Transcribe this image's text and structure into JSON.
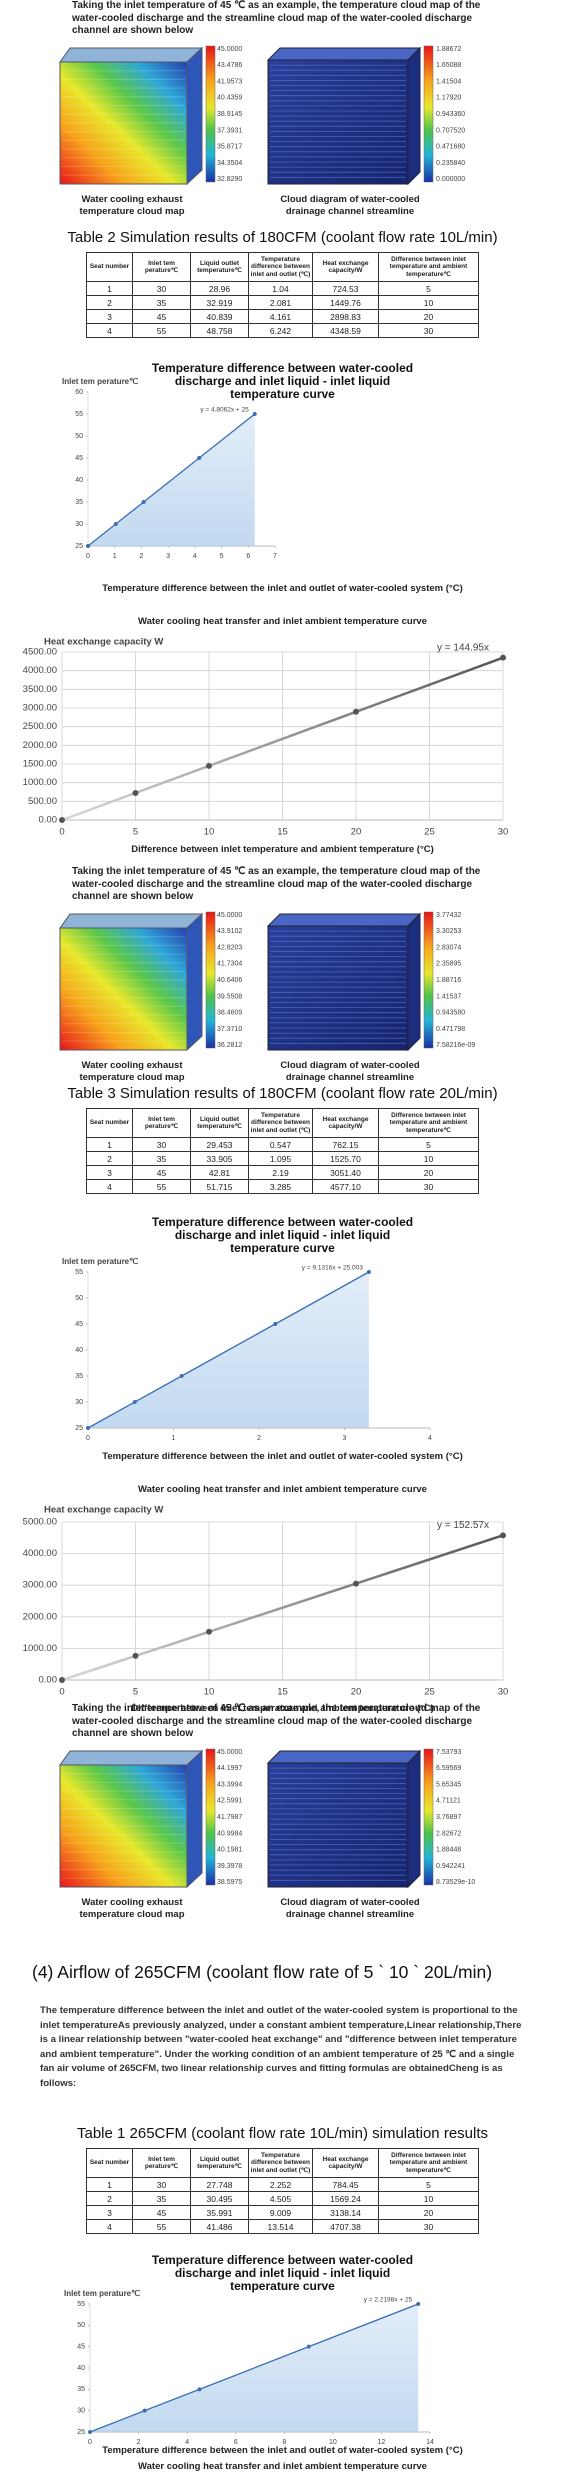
{
  "blocks": [
    {
      "kind": "figure",
      "caption": "Taking the inlet temperature of 45 ℃ as an example, the temperature cloud map of the water-cooled discharge and the streamline cloud map of the water-cooled discharge channel are shown below",
      "left": {
        "legend": [
          "45.0000",
          "43.4786",
          "41.9573",
          "40.4359",
          "38.9145",
          "37.3931",
          "35.8717",
          "34.3504",
          "32.8290"
        ],
        "label": "Water cooling exhaust temperature cloud map"
      },
      "right": {
        "legend": [
          "1.88672",
          "1.65088",
          "1.41504",
          "1.17920",
          "0.943360",
          "0.707520",
          "0.471680",
          "0.235840",
          "0.000000"
        ],
        "label": "Cloud diagram of water-cooled drainage channel streamline"
      }
    },
    {
      "kind": "table",
      "title": "Table 2 Simulation results of 180CFM (coolant flow rate 10L/min)",
      "header": [
        "Seat number",
        "Inlet tem perature℃",
        "Liquid outlet temperature℃",
        "Temperature difference between inlet and outlet (℃)",
        "Heat exchange capacity/W",
        "Difference between inlet temperature and ambient temperature℃"
      ],
      "rows": [
        [
          "1",
          "30",
          "28.96",
          "1.04",
          "724.53",
          "5"
        ],
        [
          "2",
          "35",
          "32.919",
          "2.081",
          "1449.76",
          "10"
        ],
        [
          "3",
          "45",
          "40.839",
          "4.161",
          "2898.83",
          "20"
        ],
        [
          "4",
          "55",
          "48.758",
          "6.242",
          "4348.59",
          "30"
        ]
      ]
    },
    {
      "kind": "chart",
      "type": "line",
      "title": "Temperature difference between water-cooled discharge and inlet liquid - inlet liquid temperature curve",
      "ylabel": "Inlet tem perature℃",
      "xlabel": "Temperature difference between the inlet and outlet of water-cooled system (°C)",
      "equation": "y = 4.8062x + 25",
      "x": [
        0,
        1.04,
        2.081,
        4.161,
        6.242
      ],
      "values": [
        25,
        30,
        35,
        45,
        55
      ],
      "color": "#3a6fb5",
      "area": true,
      "grid": false,
      "xlim": [
        0,
        7
      ],
      "xticks": [
        0,
        1,
        2,
        3,
        4,
        5,
        6,
        7
      ],
      "ylim": [
        25,
        60
      ],
      "yticks": [
        25,
        30,
        35,
        40,
        45,
        50,
        55,
        60
      ]
    },
    {
      "kind": "caption",
      "text": "Water cooling heat transfer and inlet ambient temperature curve"
    },
    {
      "kind": "chart",
      "type": "line",
      "ylabel": "Heat exchange capacity W",
      "xlabel": "Difference between inlet temperature and ambient temperature (°C)",
      "equation": "y = 144.95x",
      "x": [
        0,
        5,
        10,
        20,
        30
      ],
      "values": [
        0,
        724.53,
        1449.76,
        2898.83,
        4348.59
      ],
      "color": "#555555",
      "area": false,
      "grid": true,
      "xlim": [
        0,
        30
      ],
      "xticks": [
        0,
        5,
        10,
        15,
        20,
        25,
        30
      ],
      "ylim": [
        0,
        4500
      ],
      "yticks": [
        {
          "value": 0,
          "label": "0.00"
        },
        {
          "value": 500,
          "label": "500.00"
        },
        {
          "value": 1000,
          "label": "1000.00"
        },
        {
          "value": 1500,
          "label": "1500.00"
        },
        {
          "value": 2000,
          "label": "2000.00"
        },
        {
          "value": 2500,
          "label": "2500.00"
        },
        {
          "value": 3000,
          "label": "3000.00"
        },
        {
          "value": 3500,
          "label": "3500.00"
        },
        {
          "value": 4000,
          "label": "4000.00"
        },
        {
          "value": 4500,
          "label": "4500.00"
        }
      ]
    },
    {
      "kind": "figure",
      "caption": "Taking the inlet temperature of 45 ℃ as an example, the temperature cloud map of the water-cooled discharge and the streamline cloud map of the water-cooled discharge channel are shown below",
      "left": {
        "legend": [
          "45.0000",
          "43.9102",
          "42.8203",
          "41.7304",
          "40.6406",
          "39.5508",
          "38.4609",
          "37.3710",
          "36.2812"
        ],
        "label": "Water cooling exhaust temperature cloud map"
      },
      "right": {
        "legend": [
          "3.77432",
          "3.30253",
          "2.83074",
          "2.35895",
          "1.88716",
          "1.41537",
          "0.943580",
          "0.471798",
          "7.58216e-09"
        ],
        "label": "Cloud diagram of water-cooled drainage channel streamline"
      }
    },
    {
      "kind": "table",
      "title": "Table 3 Simulation results of 180CFM (coolant flow rate 20L/min)",
      "header": [
        "Seat number",
        "Inlet tem perature℃",
        "Liquid outlet temperature℃",
        "Temperature difference between inlet and outlet (℃)",
        "Heat exchange capacity/W",
        "Difference between inlet temperature and ambient temperature℃"
      ],
      "rows": [
        [
          "1",
          "30",
          "29.453",
          "0.547",
          "762.15",
          "5"
        ],
        [
          "2",
          "35",
          "33.905",
          "1.095",
          "1525.70",
          "10"
        ],
        [
          "3",
          "45",
          "42.81",
          "2.19",
          "3051.40",
          "20"
        ],
        [
          "4",
          "55",
          "51.715",
          "3.285",
          "4577.10",
          "30"
        ]
      ]
    },
    {
      "kind": "chart",
      "type": "line",
      "title": "Temperature difference between water-cooled discharge and inlet liquid - inlet liquid temperature curve",
      "ylabel": "Inlet tem perature℃",
      "xlabel": "Temperature difference between the inlet and outlet of water-cooled system (°C)",
      "equation": "y = 9.1316x + 25.003",
      "x": [
        0,
        0.547,
        1.095,
        2.19,
        3.285
      ],
      "values": [
        25,
        30,
        35,
        45,
        55
      ],
      "color": "#3a6fb5",
      "area": true,
      "grid": false,
      "xlim": [
        0,
        4
      ],
      "xticks": [
        0,
        1,
        2,
        3,
        4
      ],
      "ylim": [
        25,
        55
      ],
      "yticks": [
        25,
        30,
        35,
        40,
        45,
        50,
        55
      ]
    },
    {
      "kind": "caption",
      "text": "Water cooling heat transfer and inlet ambient temperature curve"
    },
    {
      "kind": "chart",
      "type": "line",
      "ylabel": "Heat exchange capacity W",
      "xlabel": "Difference between inlet temperature and ambient temperature (°C)",
      "equation": "y = 152.57x",
      "x": [
        0,
        5,
        10,
        20,
        30
      ],
      "values": [
        0,
        762.15,
        1525.7,
        3051.4,
        4577.1
      ],
      "color": "#555555",
      "area": false,
      "grid": true,
      "xlim": [
        0,
        30
      ],
      "xticks": [
        0,
        5,
        10,
        15,
        20,
        25,
        30
      ],
      "ylim": [
        0,
        5000
      ],
      "yticks": [
        {
          "value": 0,
          "label": "0.00"
        },
        {
          "value": 1000,
          "label": "1000.00"
        },
        {
          "value": 2000,
          "label": "2000.00"
        },
        {
          "value": 3000,
          "label": "3000.00"
        },
        {
          "value": 4000,
          "label": "4000.00"
        },
        {
          "value": 5000,
          "label": "5000.00"
        }
      ]
    },
    {
      "kind": "figure",
      "caption": "Taking the inlet temperature of 45 ℃ as an example, the temperature cloud map of the water-cooled discharge and the streamline cloud map of the water-cooled discharge channel are shown below",
      "left": {
        "legend": [
          "45.0000",
          "44.1997",
          "43.3994",
          "42.5991",
          "41.7987",
          "40.9984",
          "40.1981",
          "39.3978",
          "38.5975"
        ],
        "label": "Water cooling exhaust temperature cloud map"
      },
      "right": {
        "legend": [
          "7.53793",
          "6.59569",
          "5.65345",
          "4.71121",
          "3.76897",
          "2.82672",
          "1.88448",
          "0.942241",
          "8.73529e-10"
        ],
        "label": "Cloud diagram of water-cooled drainage channel streamline"
      }
    },
    {
      "kind": "heading",
      "text": "(4) Airflow of 265CFM (coolant flow rate of 5 ` 10 ` 20L/min)"
    },
    {
      "kind": "paragraph",
      "text": "The temperature difference between the inlet and outlet of the water-cooled system is proportional to the inlet temperatureAs previously analyzed, under a constant ambient temperature,Linear relationship,There is a linear relationship between \"water-cooled heat exchange\" and \"difference between inlet temperature and ambient temperature\". Under the working condition of an ambient temperature of 25 ℃ and a single fan air volume of 265CFM, two linear relationship curves and fitting formulas are obtainedCheng is as follows:"
    },
    {
      "kind": "table",
      "title": "Table 1 265CFM (coolant flow rate 10L/min) simulation results",
      "header": [
        "Seat number",
        "Inlet tem perature℃",
        "Liquid outlet temperature℃",
        "Temperature difference between inlet and outlet (℃)",
        "Heat exchange capacity/W",
        "Difference between inlet temperature and ambient temperature℃"
      ],
      "rows": [
        [
          "1",
          "30",
          "27.748",
          "2.252",
          "784.45",
          "5"
        ],
        [
          "2",
          "35",
          "30.495",
          "4.505",
          "1569.24",
          "10"
        ],
        [
          "3",
          "45",
          "35.991",
          "9.009",
          "3138.14",
          "20"
        ],
        [
          "4",
          "55",
          "41.486",
          "13.514",
          "4707.38",
          "30"
        ]
      ]
    },
    {
      "kind": "chart",
      "type": "line",
      "title": "Temperature difference between water-cooled discharge and inlet liquid - inlet liquid temperature curve",
      "ylabel": "Inlet tem perature℃",
      "xlabel": "Temperature difference between the inlet and outlet of water-cooled system (°C)",
      "equation": "y = 2.2198x + 25",
      "x": [
        0,
        2.252,
        4.505,
        9.009,
        13.514
      ],
      "values": [
        25,
        30,
        35,
        45,
        55
      ],
      "color": "#3a6fb5",
      "area": true,
      "grid": false,
      "xlim": [
        0,
        14
      ],
      "xticks": [
        0,
        2,
        4,
        6,
        8,
        10,
        12,
        14
      ],
      "ylim": [
        25,
        55
      ],
      "yticks": [
        25,
        30,
        35,
        40,
        45,
        50,
        55
      ]
    },
    {
      "kind": "caption",
      "text": "Water cooling heat transfer and inlet ambient temperature curve"
    }
  ]
}
